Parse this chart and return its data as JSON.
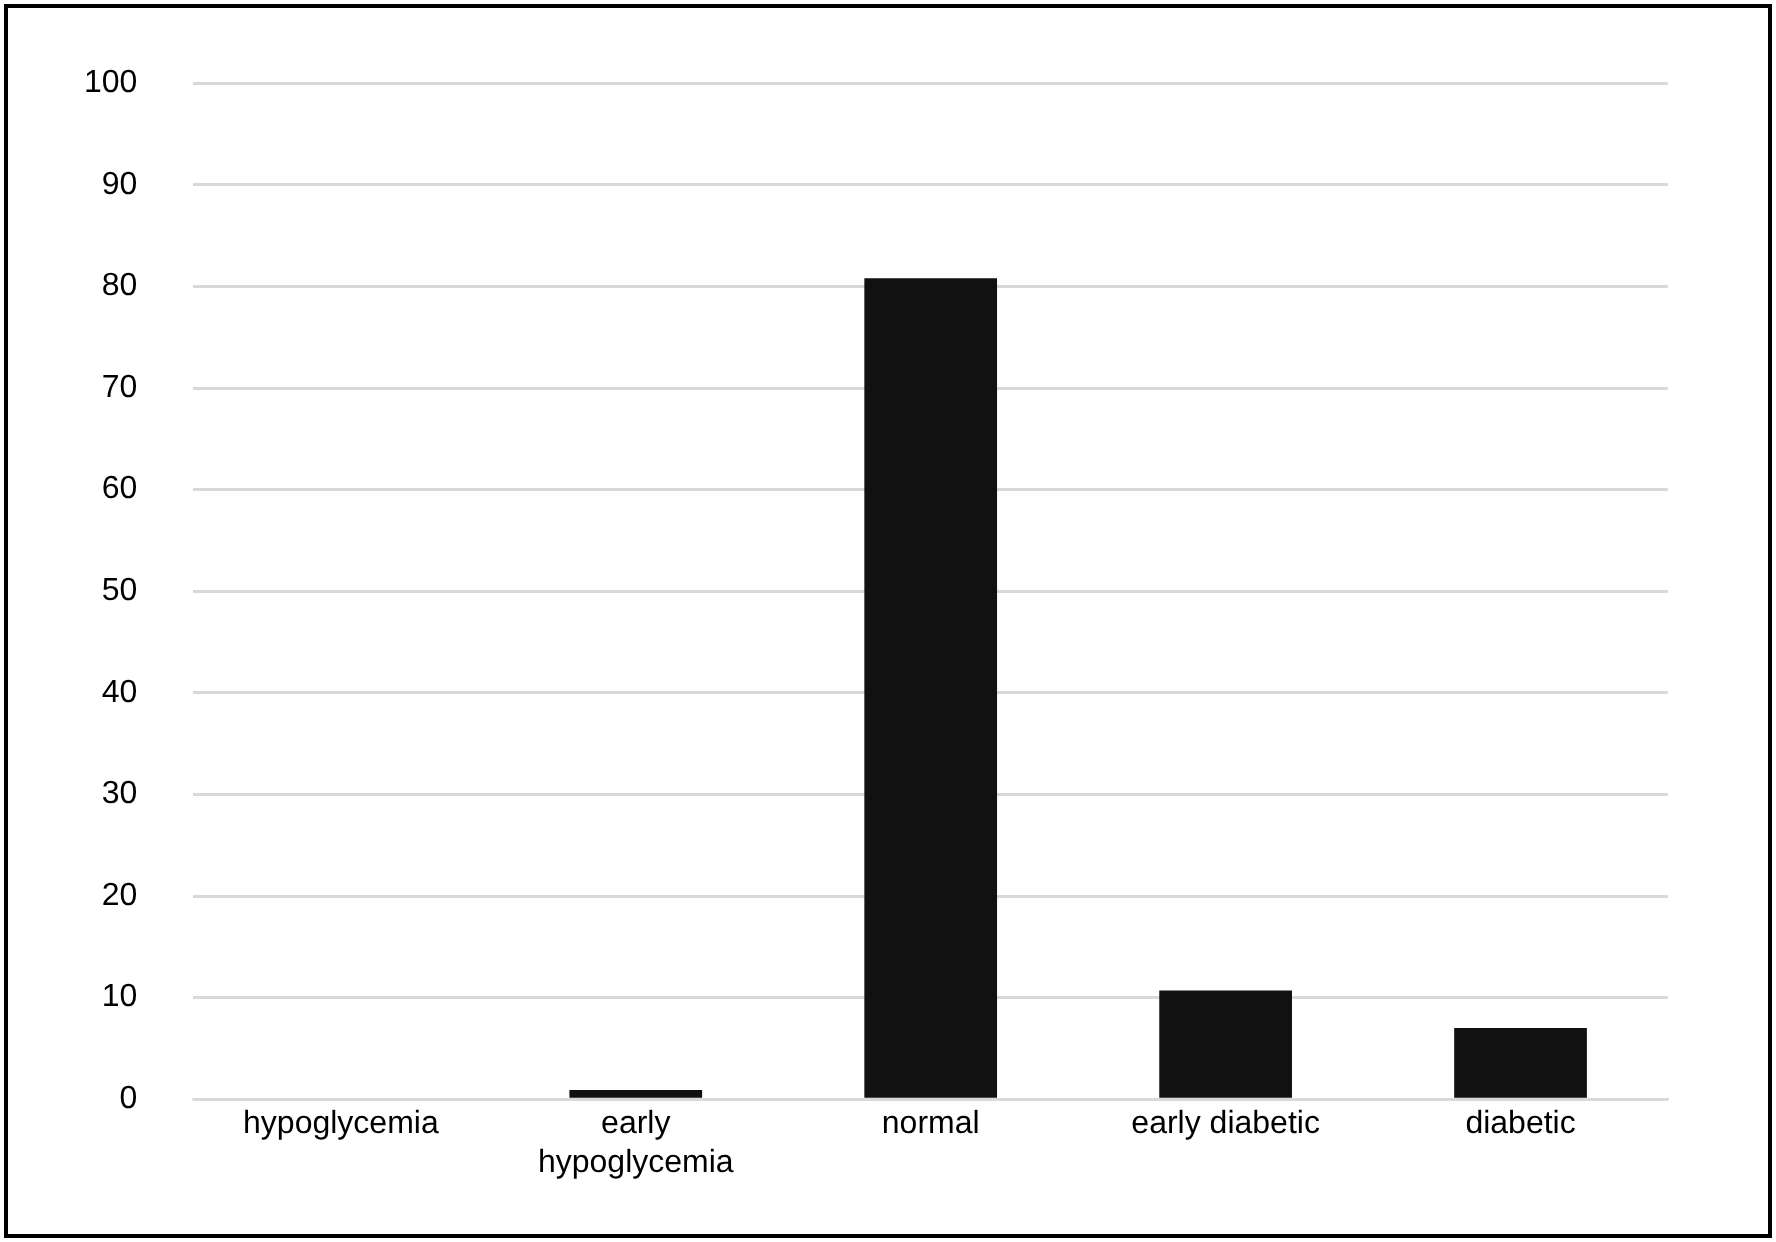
{
  "chart_data": {
    "type": "bar",
    "categories": [
      "hypoglycemia",
      "early hypoglycemia",
      "normal",
      "early diabetic",
      "diabetic"
    ],
    "values": [
      0,
      0.9,
      80.8,
      10.7,
      7.0
    ],
    "color": "#111111",
    "ylim": [
      0,
      100
    ],
    "yticks": [
      0,
      10,
      20,
      30,
      40,
      50,
      60,
      70,
      80,
      90,
      100
    ],
    "grid": "y",
    "legend": false
  }
}
